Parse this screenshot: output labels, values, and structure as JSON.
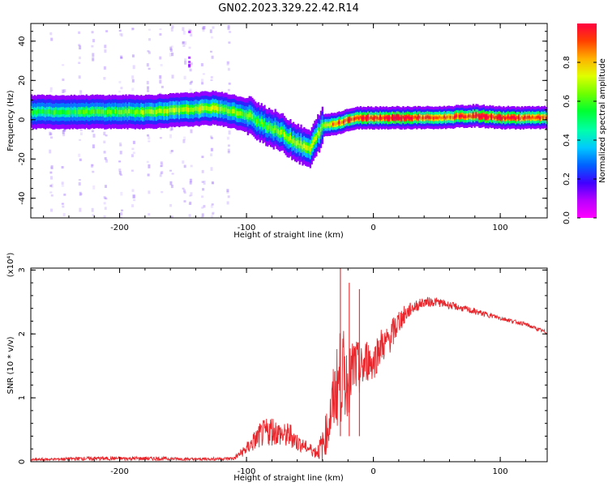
{
  "figure": {
    "title": "GN02.2023.329.22.42.R14"
  },
  "chart_data": [
    {
      "type": "heatmap",
      "xlabel": "Height of straight line (km)",
      "ylabel": "Frequency (Hz)",
      "xlim": [
        -270,
        137
      ],
      "ylim": [
        -50,
        49
      ],
      "xticks": [
        "-200",
        "-100",
        "0",
        "100"
      ],
      "yticks": [
        "-40",
        "-20",
        "0",
        "20",
        "40"
      ],
      "colorbar": {
        "label": "Normalized spectral amplitude",
        "range": [
          0,
          1
        ],
        "ticks": [
          "0.0",
          "0.2",
          "0.4",
          "0.6",
          "0.8"
        ],
        "colormap": [
          "#ff00ff",
          "#b800ff",
          "#4000ff",
          "#0060ff",
          "#00c8ff",
          "#00ffaa",
          "#00ff30",
          "#70ff00",
          "#e0ff00",
          "#ffb000",
          "#ff4000",
          "#ff0040"
        ]
      },
      "ridge": {
        "x": [
          -270,
          -240,
          -210,
          -180,
          -150,
          -125,
          -110,
          -95,
          -85,
          -75,
          -65,
          -55,
          -50,
          -45,
          -40,
          -30,
          -20,
          -10,
          0,
          20,
          50,
          80,
          100,
          137
        ],
        "y": [
          4,
          4,
          4,
          4,
          5,
          6,
          4,
          1,
          -3,
          -6,
          -10,
          -14,
          -15,
          -8,
          -3,
          -2,
          0,
          1,
          1,
          1,
          1,
          2,
          1,
          1
        ],
        "amplitude": [
          0.45,
          0.45,
          0.5,
          0.55,
          0.6,
          0.6,
          0.55,
          0.5,
          0.5,
          0.55,
          0.6,
          0.65,
          0.6,
          0.55,
          0.6,
          0.8,
          0.85,
          0.9,
          0.85,
          0.95,
          0.75,
          0.9,
          0.9,
          0.8
        ]
      }
    },
    {
      "type": "line",
      "xlabel": "Height of straight line (km)",
      "ylabel": "SNR (10 * v/v)",
      "multiplier": "(x10⁴)",
      "xlim": [
        -270,
        137
      ],
      "ylim": [
        0,
        3.03
      ],
      "xticks": [
        "-200",
        "-100",
        "0",
        "100"
      ],
      "yticks": [
        "0",
        "1",
        "2",
        "3"
      ],
      "color": "#e8262b",
      "series": [
        {
          "x": [
            -270,
            -250,
            -230,
            -200,
            -170,
            -140,
            -110,
            -100,
            -90,
            -80,
            -75,
            -70,
            -65,
            -60,
            -55,
            -50,
            -45,
            -40,
            -35,
            -30,
            -25,
            -20,
            -15,
            -10,
            -5,
            0,
            5,
            10,
            15,
            20,
            30,
            40,
            50,
            60,
            70,
            80,
            90,
            100,
            110,
            120,
            130,
            137
          ],
          "values": [
            0.03,
            0.04,
            0.05,
            0.05,
            0.05,
            0.04,
            0.05,
            0.2,
            0.4,
            0.5,
            0.45,
            0.4,
            0.42,
            0.3,
            0.25,
            0.2,
            0.15,
            0.25,
            0.6,
            1.1,
            1.4,
            1.2,
            1.5,
            1.4,
            1.6,
            1.55,
            1.8,
            1.85,
            2.0,
            2.2,
            2.4,
            2.5,
            2.5,
            2.45,
            2.4,
            2.35,
            2.3,
            2.25,
            2.2,
            2.15,
            2.07,
            2.02
          ],
          "noise": [
            0.02,
            0.02,
            0.03,
            0.03,
            0.03,
            0.02,
            0.03,
            0.1,
            0.2,
            0.25,
            0.2,
            0.2,
            0.2,
            0.15,
            0.1,
            0.1,
            0.1,
            0.25,
            0.4,
            0.6,
            0.8,
            0.5,
            0.5,
            0.4,
            0.35,
            0.3,
            0.3,
            0.25,
            0.25,
            0.2,
            0.1,
            0.08,
            0.07,
            0.06,
            0.05,
            0.05,
            0.04,
            0.04,
            0.03,
            0.03,
            0.03,
            0.03
          ],
          "spikes": [
            {
              "x": -26,
              "value": 3.03
            },
            {
              "x": -19,
              "value": 2.8
            },
            {
              "x": -11,
              "value": 2.7
            }
          ]
        }
      ]
    }
  ]
}
